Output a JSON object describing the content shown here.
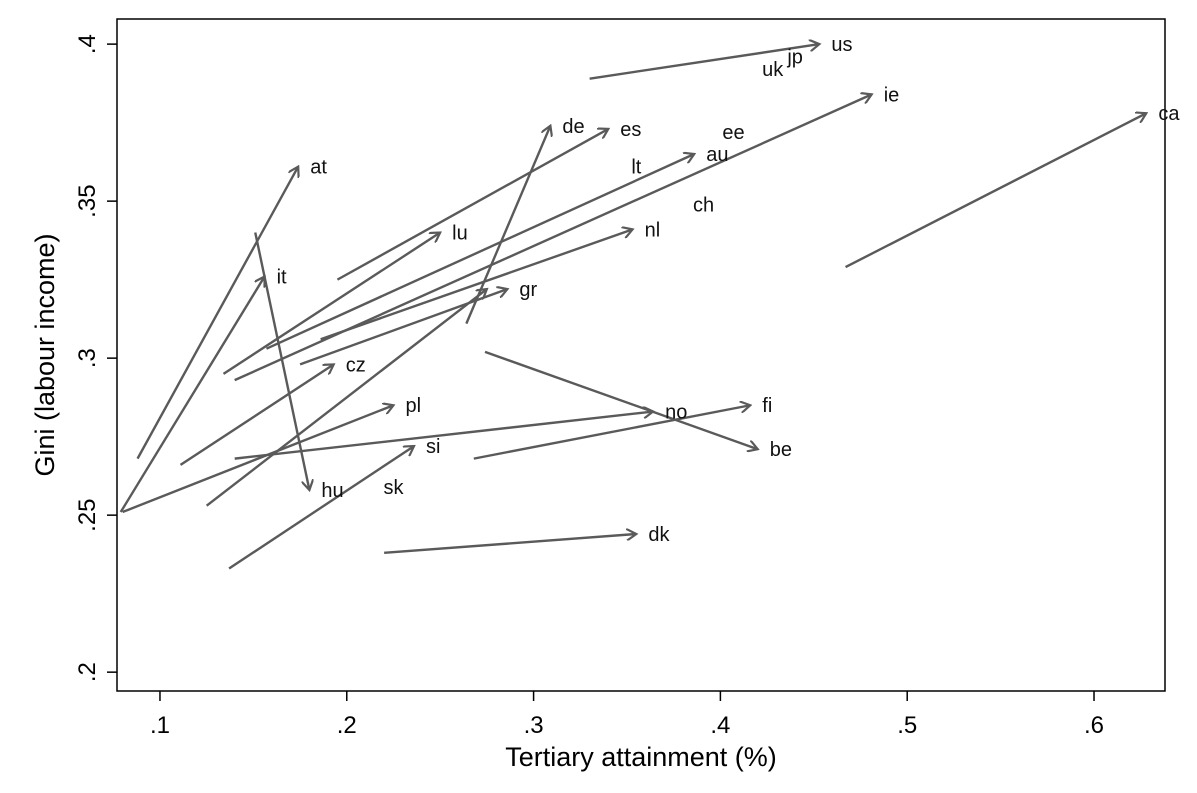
{
  "chart_data": {
    "type": "scatter",
    "subtype": "arrow-plot",
    "xlabel": "Tertiary attainment (%)",
    "ylabel": "Gini (labour income)",
    "xlim": [
      0.077,
      0.638
    ],
    "ylim": [
      0.194,
      0.408
    ],
    "xticks": [
      {
        "v": 0.1,
        "label": ".1"
      },
      {
        "v": 0.2,
        "label": ".2"
      },
      {
        "v": 0.3,
        "label": ".3"
      },
      {
        "v": 0.4,
        "label": ".4"
      },
      {
        "v": 0.5,
        "label": ".5"
      },
      {
        "v": 0.6,
        "label": ".6"
      }
    ],
    "yticks": [
      {
        "v": 0.2,
        "label": ".2"
      },
      {
        "v": 0.25,
        "label": ".25"
      },
      {
        "v": 0.3,
        "label": ".3"
      },
      {
        "v": 0.35,
        "label": ".35"
      },
      {
        "v": 0.4,
        "label": ".4"
      }
    ],
    "grid": false,
    "legend": "none",
    "arrow_color": "#5a5a5a",
    "arrows": [
      {
        "label": "at",
        "x0": 0.088,
        "y0": 0.268,
        "x1": 0.174,
        "y1": 0.361,
        "labeled": true
      },
      {
        "label": "it",
        "x0": 0.079,
        "y0": 0.251,
        "x1": 0.156,
        "y1": 0.326,
        "labeled": true
      },
      {
        "label": "hu",
        "x0": 0.151,
        "y0": 0.34,
        "x1": 0.18,
        "y1": 0.258,
        "labeled": true
      },
      {
        "label": "lu",
        "x0": 0.134,
        "y0": 0.295,
        "x1": 0.25,
        "y1": 0.34,
        "labeled": true
      },
      {
        "label": "au",
        "x0": 0.157,
        "y0": 0.303,
        "x1": 0.386,
        "y1": 0.365,
        "labeled": true
      },
      {
        "label": "ie",
        "x0": 0.14,
        "y0": 0.293,
        "x1": 0.481,
        "y1": 0.384,
        "labeled": true
      },
      {
        "label": "nl",
        "x0": 0.186,
        "y0": 0.306,
        "x1": 0.353,
        "y1": 0.341,
        "labeled": true
      },
      {
        "label": "gr",
        "x0": 0.175,
        "y0": 0.298,
        "x1": 0.286,
        "y1": 0.322,
        "labeled": true
      },
      {
        "label": "cz",
        "x0": 0.111,
        "y0": 0.266,
        "x1": 0.193,
        "y1": 0.298,
        "labeled": true
      },
      {
        "label": "pl",
        "x0": 0.08,
        "y0": 0.251,
        "x1": 0.225,
        "y1": 0.285,
        "labeled": true
      },
      {
        "label": "no",
        "x0": 0.14,
        "y0": 0.268,
        "x1": 0.364,
        "y1": 0.283,
        "labeled": true
      },
      {
        "label": "fi",
        "x0": 0.268,
        "y0": 0.268,
        "x1": 0.416,
        "y1": 0.285,
        "labeled": true
      },
      {
        "label": "be",
        "x0": 0.274,
        "y0": 0.302,
        "x1": 0.42,
        "y1": 0.271,
        "labeled": true
      },
      {
        "label": "si",
        "x0": 0.137,
        "y0": 0.233,
        "x1": 0.236,
        "y1": 0.272,
        "labeled": true
      },
      {
        "label": "sk",
        "x0": 0.125,
        "y0": 0.253,
        "x1": 0.275,
        "y1": 0.322,
        "labeled": false
      },
      {
        "label": "de",
        "x0": 0.264,
        "y0": 0.311,
        "x1": 0.309,
        "y1": 0.374,
        "labeled": true
      },
      {
        "label": "es",
        "x0": 0.195,
        "y0": 0.325,
        "x1": 0.34,
        "y1": 0.373,
        "labeled": true
      },
      {
        "label": "dk",
        "x0": 0.22,
        "y0": 0.238,
        "x1": 0.355,
        "y1": 0.244,
        "labeled": true
      },
      {
        "label": "us",
        "x0": 0.33,
        "y0": 0.389,
        "x1": 0.453,
        "y1": 0.4,
        "labeled": true
      },
      {
        "label": "ca",
        "x0": 0.467,
        "y0": 0.329,
        "x1": 0.628,
        "y1": 0.378,
        "labeled": true
      }
    ],
    "points": [
      {
        "label": "uk",
        "x": 0.428,
        "y": 0.392
      },
      {
        "label": "jp",
        "x": 0.44,
        "y": 0.396
      },
      {
        "label": "ee",
        "x": 0.407,
        "y": 0.372
      },
      {
        "label": "lt",
        "x": 0.355,
        "y": 0.361
      },
      {
        "label": "ch",
        "x": 0.391,
        "y": 0.349
      },
      {
        "label": "sk",
        "x": 0.225,
        "y": 0.259
      }
    ]
  }
}
